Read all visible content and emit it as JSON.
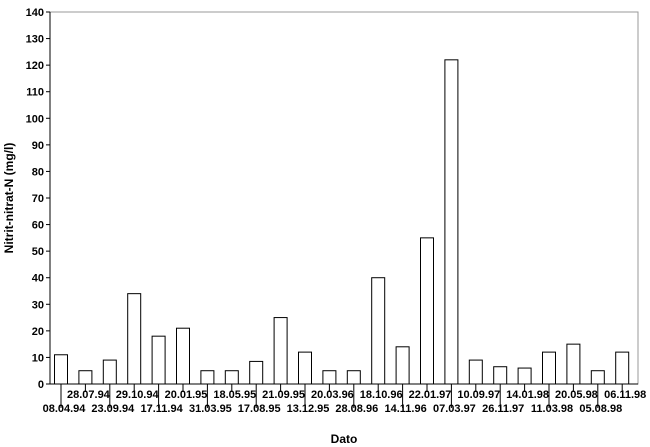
{
  "chart_data": {
    "type": "bar",
    "xlabel": "Dato",
    "ylabel": "Nitrit-nitrat-N (mg/l)",
    "ylim": [
      0,
      140
    ],
    "yticks": [
      0,
      10,
      20,
      30,
      40,
      50,
      60,
      70,
      80,
      90,
      100,
      110,
      120,
      130,
      140
    ],
    "grid": false,
    "categories": [
      "08.04.94",
      "28.07.94",
      "23.09.94",
      "29.10.94",
      "17.11.94",
      "20.01.95",
      "31.03.95",
      "18.05.95",
      "17.08.95",
      "21.09.95",
      "13.12.95",
      "20.03.96",
      "28.08.96",
      "18.10.96",
      "14.11.96",
      "22.01.97",
      "07.03.97",
      "10.09.97",
      "26.11.97",
      "14.01.98",
      "11.03.98",
      "20.05.98",
      "05.08.98",
      "06.11.98"
    ],
    "values": [
      11,
      5,
      9,
      34,
      18,
      21,
      5,
      5,
      8.5,
      25,
      12,
      5,
      5,
      40,
      14,
      55,
      122,
      9,
      6.5,
      6,
      12,
      15,
      5,
      12
    ],
    "colors": {
      "bar_fill": "#ffffff",
      "bar_stroke": "#000000",
      "axis": "#000000",
      "frame": "#999999"
    }
  }
}
